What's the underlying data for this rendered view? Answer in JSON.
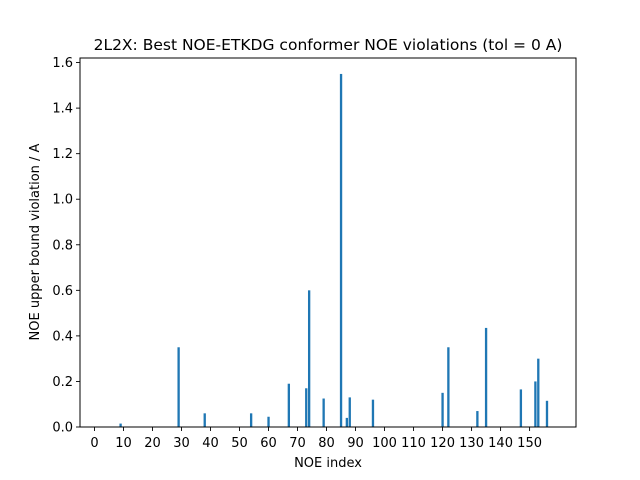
{
  "chart_data": {
    "type": "bar",
    "title": "2L2X: Best NOE-ETKDG conformer NOE violations (tol = 0 A)",
    "xlabel": "NOE index",
    "ylabel": "NOE upper bound violation / A",
    "xlim": [
      -5,
      166
    ],
    "ylim": [
      0,
      1.62
    ],
    "xticks": [
      0,
      10,
      20,
      30,
      40,
      50,
      60,
      70,
      80,
      90,
      100,
      110,
      120,
      130,
      140,
      150
    ],
    "yticks": [
      0.0,
      0.2,
      0.4,
      0.6,
      0.8,
      1.0,
      1.2,
      1.4,
      1.6
    ],
    "ytick_labels": [
      "0.0",
      "0.2",
      "0.4",
      "0.6",
      "0.8",
      "1.0",
      "1.2",
      "1.4",
      "1.6"
    ],
    "grid": false,
    "bar_color": "#1f77b4",
    "x": [
      9,
      29,
      38,
      54,
      60,
      67,
      73,
      74,
      79,
      85,
      87,
      88,
      96,
      120,
      122,
      132,
      135,
      147,
      152,
      153,
      156
    ],
    "values": [
      0.015,
      0.35,
      0.06,
      0.06,
      0.045,
      0.19,
      0.17,
      0.6,
      0.125,
      1.55,
      0.04,
      0.13,
      0.12,
      0.15,
      0.35,
      0.07,
      0.435,
      0.165,
      0.2,
      0.3,
      0.115
    ]
  }
}
